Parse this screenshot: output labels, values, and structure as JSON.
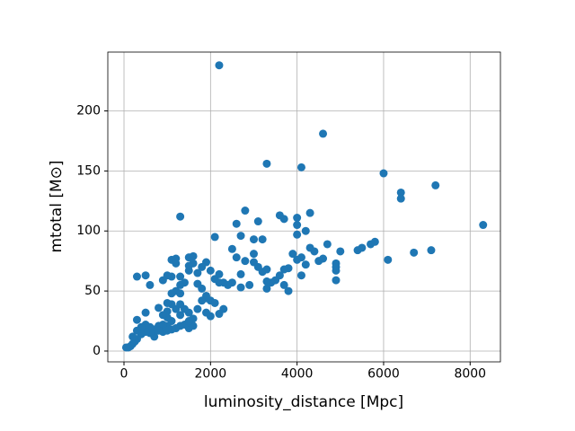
{
  "chart_data": {
    "type": "scatter",
    "xlabel": "luminosity_distance [Mpc]",
    "ylabel": "mtotal [M⊙]",
    "color": "#1f77b4",
    "grid": true,
    "xlim": [
      -374,
      8700
    ],
    "xticks": [
      0,
      2000,
      4000,
      6000,
      8000
    ],
    "ylim": [
      -9,
      249
    ],
    "yticks": [
      0,
      50,
      100,
      150,
      200
    ],
    "x": [
      2200,
      4600,
      3300,
      4100,
      6000,
      6400,
      6400,
      7200,
      8300,
      1300,
      2800,
      3100,
      3600,
      3700,
      4000,
      4000,
      4300,
      4000,
      2600,
      2100,
      2700,
      3000,
      3200,
      4200,
      5700,
      5800,
      5500,
      5400,
      6100,
      6700,
      7100,
      5000,
      4900,
      4900,
      4900,
      4900,
      4700,
      4600,
      4500,
      4400,
      4300,
      4200,
      4100,
      4000,
      3900,
      3800,
      3700,
      3700,
      3800,
      4100,
      3600,
      3500,
      3400,
      3300,
      3300,
      3200,
      3300,
      3100,
      3000,
      3000,
      2800,
      2700,
      2600,
      2500,
      2700,
      2900,
      2500,
      2400,
      2300,
      2200,
      2100,
      2200,
      2000,
      1900,
      1800,
      1700,
      1600,
      1500,
      1500,
      1600,
      1200,
      1100,
      1200,
      1300,
      1100,
      1000,
      900,
      600,
      500,
      300,
      1500,
      1400,
      1300,
      1200,
      1100,
      1700,
      1800,
      1900,
      2000,
      1900,
      2100,
      2300,
      2200,
      2000,
      1900,
      1800,
      1700,
      1600,
      1500,
      1500,
      1600,
      1400,
      1400,
      1300,
      1300,
      1200,
      1200,
      1100,
      1100,
      1100,
      1000,
      1000,
      1000,
      1000,
      900,
      900,
      900,
      800,
      800,
      700,
      700,
      600,
      600,
      500,
      500,
      500,
      400,
      400,
      300,
      300,
      300,
      250,
      200,
      150,
      100,
      50,
      200,
      800,
      1000,
      1300,
      1300,
      1500
    ],
    "values": [
      238,
      181,
      156,
      153,
      148,
      132,
      127,
      138,
      105,
      112,
      117,
      108,
      113,
      110,
      111,
      105,
      115,
      97,
      106,
      95,
      96,
      93,
      93,
      100,
      89,
      91,
      86,
      84,
      76,
      82,
      84,
      83,
      73,
      70,
      67,
      59,
      89,
      77,
      75,
      83,
      86,
      72,
      78,
      76,
      81,
      69,
      68,
      55,
      50,
      63,
      63,
      59,
      57,
      52,
      58,
      66,
      68,
      70,
      74,
      81,
      75,
      64,
      78,
      85,
      53,
      55,
      57,
      55,
      57,
      57,
      60,
      64,
      67,
      74,
      70,
      65,
      73,
      71,
      78,
      79,
      77,
      76,
      73,
      62,
      62,
      63,
      59,
      55,
      63,
      62,
      67,
      57,
      55,
      50,
      48,
      56,
      52,
      46,
      42,
      44,
      40,
      35,
      31,
      29,
      32,
      42,
      35,
      27,
      32,
      19,
      21,
      35,
      22,
      30,
      21,
      35,
      19,
      39,
      25,
      18,
      40,
      33,
      28,
      21,
      30,
      22,
      16,
      36,
      21,
      18,
      12,
      20,
      15,
      32,
      22,
      16,
      20,
      14,
      26,
      17,
      10,
      8,
      6,
      4,
      3,
      3,
      12,
      17,
      17,
      48,
      39,
      25
    ]
  }
}
